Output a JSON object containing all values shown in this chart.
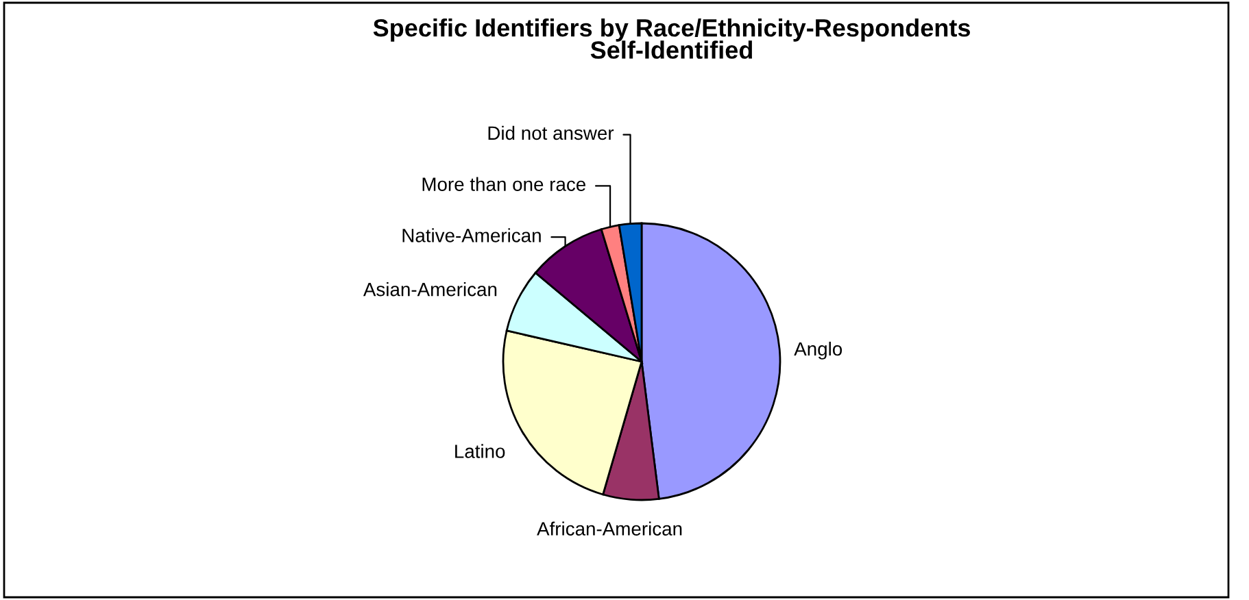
{
  "chart_data": {
    "type": "pie",
    "title": "Specific Identifiers by Race/Ethnicity-Respondents\nSelf-Identified",
    "categories": [
      "Anglo",
      "African-American",
      "Latino",
      "Asian-American",
      "Native-American",
      "More than one race",
      "Did not answer"
    ],
    "values": [
      48.0,
      6.5,
      24.1,
      7.5,
      9.2,
      2.1,
      2.6
    ],
    "colors": [
      "#9999ff",
      "#993366",
      "#ffffcc",
      "#ccffff",
      "#660066",
      "#ff8080",
      "#0066cc"
    ],
    "legend": false
  }
}
